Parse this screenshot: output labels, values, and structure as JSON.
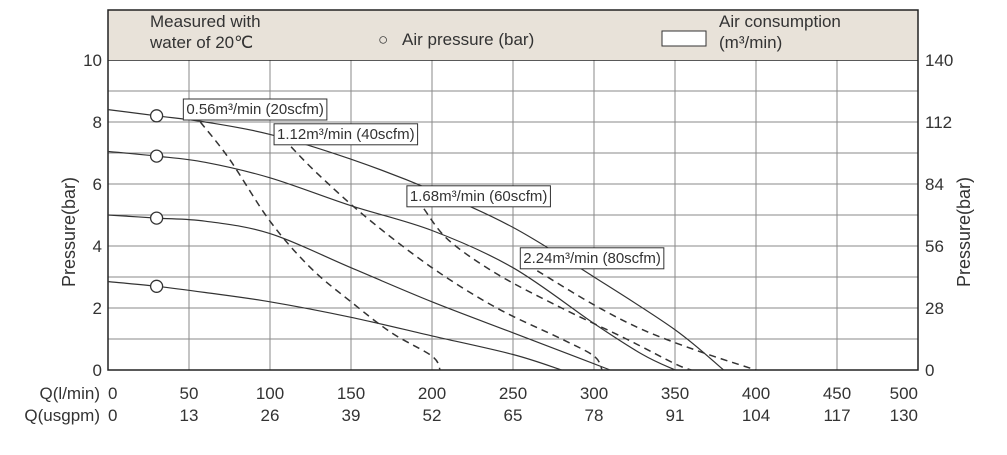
{
  "chart_data": {
    "type": "line",
    "legend": {
      "note_line1": "Measured with",
      "note_line2": "water of 20℃",
      "pressure_symbol": "○",
      "pressure_label": "Air pressure (bar)",
      "consumption_label_line1": "Air consumption",
      "consumption_label_line2": "(m³/min)",
      "background": "#e8e2d9"
    },
    "ylabel_left": "Pressure(bar)",
    "ylabel_right": "Pressure(bar)",
    "x_row1_label": "Q(l/min)",
    "x_row2_label": "Q(usgpm)",
    "x_ticks": [
      "0",
      "50",
      "100",
      "150",
      "200",
      "250",
      "300",
      "350",
      "400",
      "450",
      "500"
    ],
    "x2_ticks": [
      "0",
      "13",
      "26",
      "39",
      "52",
      "65",
      "78",
      "91",
      "104",
      "117",
      "130"
    ],
    "y_ticks": [
      "0",
      "2",
      "4",
      "6",
      "8",
      "10"
    ],
    "y_right_ticks": [
      "0",
      "28",
      "56",
      "84",
      "112",
      "140"
    ],
    "xlim": [
      0,
      500
    ],
    "ylim": [
      0,
      10
    ],
    "grid": true,
    "pressure_curves": [
      {
        "marker": {
          "x": 30,
          "y": 8.2
        },
        "points": [
          [
            0,
            8.4
          ],
          [
            30,
            8.2
          ],
          [
            60,
            8.0
          ],
          [
            100,
            7.6
          ],
          [
            150,
            6.8
          ],
          [
            200,
            5.8
          ],
          [
            250,
            4.6
          ],
          [
            300,
            3.0
          ],
          [
            350,
            1.3
          ],
          [
            380,
            0
          ]
        ]
      },
      {
        "marker": {
          "x": 30,
          "y": 6.9
        },
        "points": [
          [
            0,
            7.05
          ],
          [
            30,
            6.9
          ],
          [
            60,
            6.7
          ],
          [
            100,
            6.2
          ],
          [
            150,
            5.3
          ],
          [
            200,
            4.5
          ],
          [
            250,
            3.3
          ],
          [
            300,
            1.5
          ],
          [
            330,
            0.5
          ],
          [
            350,
            0
          ]
        ]
      },
      {
        "marker": {
          "x": 30,
          "y": 4.9
        },
        "points": [
          [
            0,
            5.0
          ],
          [
            30,
            4.9
          ],
          [
            60,
            4.8
          ],
          [
            100,
            4.4
          ],
          [
            150,
            3.3
          ],
          [
            200,
            2.2
          ],
          [
            250,
            1.2
          ],
          [
            290,
            0.4
          ],
          [
            310,
            0
          ]
        ]
      },
      {
        "marker": {
          "x": 30,
          "y": 2.7
        },
        "points": [
          [
            0,
            2.85
          ],
          [
            30,
            2.7
          ],
          [
            60,
            2.5
          ],
          [
            100,
            2.2
          ],
          [
            150,
            1.7
          ],
          [
            200,
            1.1
          ],
          [
            250,
            0.5
          ],
          [
            280,
            0
          ]
        ]
      }
    ],
    "consumption_curves": [
      {
        "label": "0.56m³/min (20scfm)",
        "points": [
          [
            57,
            8.0
          ],
          [
            75,
            6.8
          ],
          [
            100,
            4.8
          ],
          [
            125,
            3.3
          ],
          [
            150,
            2.2
          ],
          [
            175,
            1.2
          ],
          [
            200,
            0.45
          ],
          [
            205,
            0
          ]
        ]
      },
      {
        "label": "1.12m³/min (40scfm)",
        "points": [
          [
            113,
            7.2
          ],
          [
            130,
            6.3
          ],
          [
            160,
            4.9
          ],
          [
            200,
            3.3
          ],
          [
            240,
            2.0
          ],
          [
            280,
            1.0
          ],
          [
            300,
            0.45
          ],
          [
            305,
            0
          ]
        ]
      },
      {
        "label": "1.68m³/min (60scfm)",
        "points": [
          [
            195,
            5.2
          ],
          [
            210,
            4.2
          ],
          [
            240,
            3.1
          ],
          [
            280,
            2.0
          ],
          [
            320,
            1.0
          ],
          [
            350,
            0.2
          ],
          [
            360,
            0
          ]
        ]
      },
      {
        "label": "2.24m³/min (80scfm)",
        "points": [
          [
            265,
            3.2
          ],
          [
            300,
            2.1
          ],
          [
            330,
            1.3
          ],
          [
            365,
            0.6
          ],
          [
            400,
            0
          ]
        ]
      }
    ]
  }
}
